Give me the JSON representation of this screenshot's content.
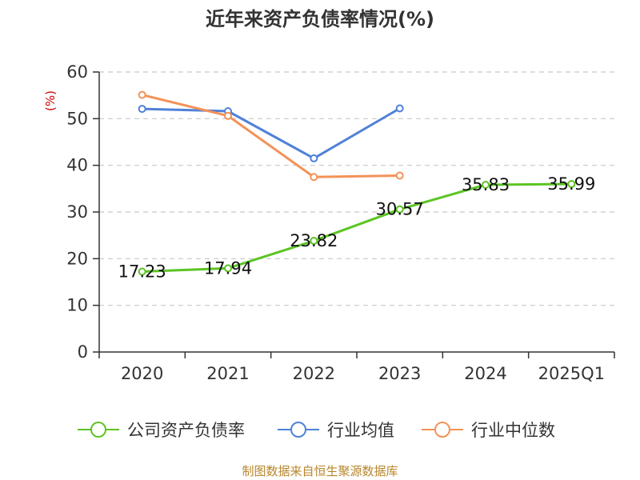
{
  "chart_data": {
    "type": "line",
    "title": "近年来资产负债率情况(%)",
    "ylabel": "(%)",
    "categories": [
      "2020",
      "2021",
      "2022",
      "2023",
      "2024",
      "2025Q1"
    ],
    "ylim": [
      0,
      60
    ],
    "yticks": [
      "0",
      "10",
      "20",
      "30",
      "40",
      "50",
      "60"
    ],
    "grid": true,
    "legend_position": "bottom",
    "series": [
      {
        "name": "公司资产负债率",
        "color": "#5cc424",
        "values": [
          17.23,
          17.94,
          23.82,
          30.57,
          35.83,
          35.99
        ],
        "labels": [
          "17.23",
          "17.94",
          "23.82",
          "30.57",
          "35.83",
          "35.99"
        ]
      },
      {
        "name": "行业均值",
        "color": "#4f81d9",
        "values": [
          52.1,
          51.6,
          41.5,
          52.2,
          null,
          null
        ]
      },
      {
        "name": "行业中位数",
        "color": "#f39257",
        "values": [
          55.1,
          50.6,
          37.5,
          37.8,
          null,
          null
        ]
      }
    ],
    "source": "制图数据来自恒生聚源数据库"
  }
}
